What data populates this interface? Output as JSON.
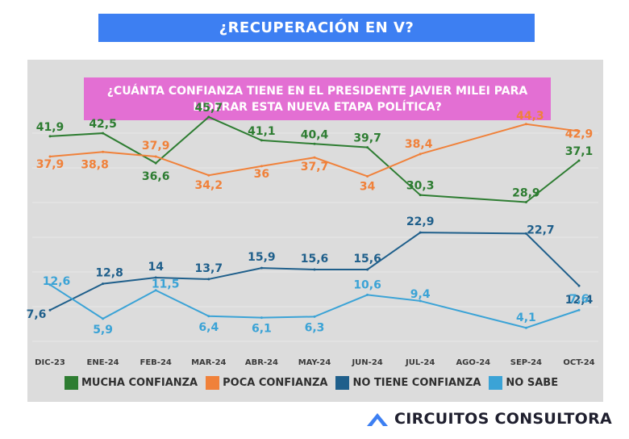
{
  "header": {
    "banner": "¿RECUPERACIÓN EN V?"
  },
  "brand": {
    "name": "CIRCUITOS CONSULTORA"
  },
  "chart_data": {
    "type": "line",
    "title": "¿CUÁNTA CONFIANZA TIENE EN EL PRESIDENTE JAVIER MILEI PARA LIDERAR ESTA NUEVA ETAPA POLÍTICA?",
    "title_lines": [
      "¿CUÁNTA CONFIANZA TIENE EN EL PRESIDENTE JAVIER MILEI PARA",
      "LIDERAR ESTA NUEVA ETAPA POLÍTICA?"
    ],
    "categories": [
      "DIC-23",
      "ENE-24",
      "FEB-24",
      "MAR-24",
      "ABR-24",
      "MAY-24",
      "JUN-24",
      "JUL-24",
      "AGO-24",
      "SEP-24",
      "OCT-24"
    ],
    "grid": true,
    "legend_position": "bottom",
    "series": [
      {
        "name": "MUCHA CONFIANZA",
        "color": "#2e7d32",
        "x": [
          "DIC-23",
          "ENE-24",
          "FEB-24",
          "MAR-24",
          "ABR-24",
          "MAY-24",
          "JUN-24",
          "JUL-24",
          "SEP-24",
          "OCT-24"
        ],
        "values": [
          41.9,
          42.5,
          36.6,
          45.7,
          41.1,
          40.4,
          39.7,
          30.3,
          28.9,
          37.1
        ],
        "labels": [
          "41,9",
          "42,5",
          "36,6",
          "45,7",
          "41,1",
          "40,4",
          "39,7",
          "30,3",
          "28,9",
          "37,1"
        ]
      },
      {
        "name": "POCA CONFIANZA",
        "color": "#f0813a",
        "x": [
          "DIC-23",
          "ENE-24",
          "FEB-24",
          "MAR-24",
          "ABR-24",
          "MAY-24",
          "JUN-24",
          "JUL-24",
          "SEP-24",
          "OCT-24"
        ],
        "values": [
          37.9,
          38.8,
          37.9,
          34.2,
          36,
          37.7,
          34,
          38.4,
          44.3,
          42.9
        ],
        "labels": [
          "37,9",
          "38,8",
          "37,9",
          "34,2",
          "36",
          "37,7",
          "34",
          "38,4",
          "44,3",
          "42,9"
        ]
      },
      {
        "name": "NO TIENE CONFIANZA",
        "color": "#1f5f8b",
        "x": [
          "DIC-23",
          "ENE-24",
          "FEB-24",
          "MAR-24",
          "ABR-24",
          "MAY-24",
          "JUN-24",
          "JUL-24",
          "SEP-24",
          "OCT-24"
        ],
        "values": [
          7.6,
          12.8,
          14,
          13.7,
          15.9,
          15.6,
          15.6,
          22.9,
          22.7,
          12.4
        ],
        "labels": [
          "7,6",
          "12,8",
          "14",
          "13,7",
          "15,9",
          "15,6",
          "15,6",
          "22,9",
          "22,7",
          "12,4"
        ]
      },
      {
        "name": "NO SABE",
        "color": "#3ba3d6",
        "x": [
          "DIC-23",
          "ENE-24",
          "FEB-24",
          "MAR-24",
          "ABR-24",
          "MAY-24",
          "JUN-24",
          "JUL-24",
          "SEP-24",
          "OCT-24"
        ],
        "values": [
          12.6,
          5.9,
          11.5,
          6.4,
          6.1,
          6.3,
          10.6,
          9.4,
          4.1,
          7.6
        ],
        "labels": [
          "12,6",
          "5,9",
          "11,5",
          "6,4",
          "6,1",
          "6,3",
          "10,6",
          "9,4",
          "4,1",
          "7,6"
        ]
      }
    ]
  }
}
